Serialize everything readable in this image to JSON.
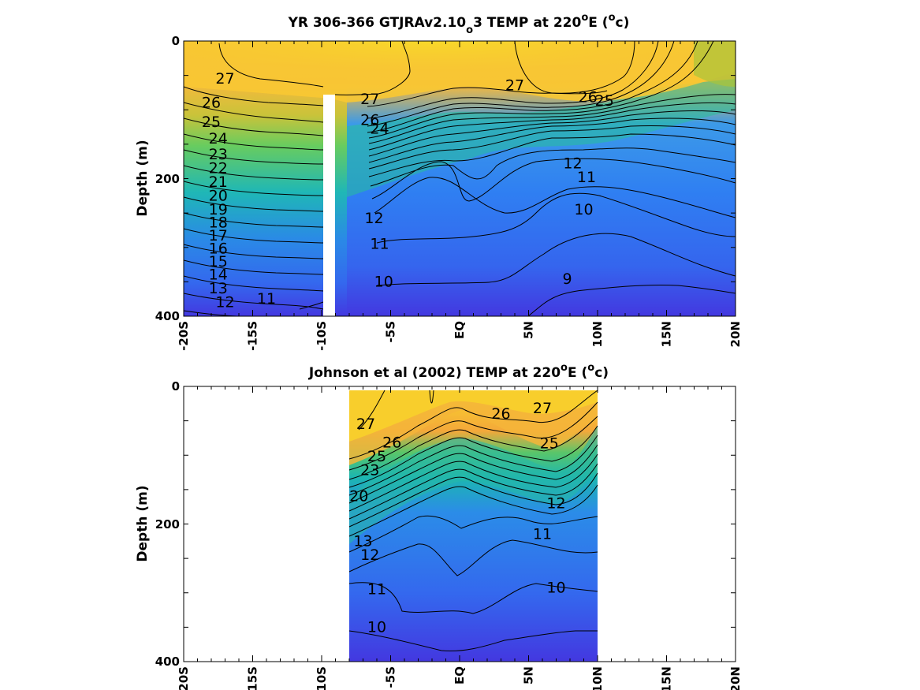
{
  "chart_data": [
    {
      "type": "heatmap",
      "title_prefix": "YR 306-366 GTJRAv2.10",
      "title_sub": "o",
      "title_mid": "3 TEMP at 220",
      "title_sup": "o",
      "title_mid2": "E (",
      "title_sup2": "o",
      "title_end": "c)",
      "ylabel": "Depth (m)",
      "xlim": [
        -20,
        20
      ],
      "ylim": [
        0,
        400
      ],
      "y_reversed": true,
      "x_ticks": [
        -20,
        -15,
        -10,
        -5,
        0,
        5,
        10,
        15,
        20
      ],
      "x_tick_labels": [
        "-20S",
        "-15S",
        "-10S",
        "-5S",
        "EQ",
        "5N",
        "10N",
        "15N",
        "20N"
      ],
      "y_ticks": [
        0,
        200,
        400
      ],
      "y_tick_labels": [
        "0",
        "200",
        "400"
      ],
      "colormap": [
        "#4338e0",
        "#2f7ff2",
        "#19c3ad",
        "#7cd05c",
        "#f5b93a",
        "#f9d929"
      ],
      "data_extent_x": [
        -20,
        20
      ],
      "missing_column_x": [
        -10,
        -9
      ],
      "contour_labels": [
        {
          "value": "27",
          "x": -17,
          "y": 55
        },
        {
          "value": "26",
          "x": -18,
          "y": 90
        },
        {
          "value": "25",
          "x": -18,
          "y": 118
        },
        {
          "value": "24",
          "x": -17.5,
          "y": 142
        },
        {
          "value": "23",
          "x": -17.5,
          "y": 165
        },
        {
          "value": "22",
          "x": -17.5,
          "y": 185
        },
        {
          "value": "21",
          "x": -17.5,
          "y": 205
        },
        {
          "value": "20",
          "x": -17.5,
          "y": 225
        },
        {
          "value": "19",
          "x": -17.5,
          "y": 245
        },
        {
          "value": "18",
          "x": -17.5,
          "y": 264
        },
        {
          "value": "17",
          "x": -17.5,
          "y": 283
        },
        {
          "value": "16",
          "x": -17.5,
          "y": 302
        },
        {
          "value": "15",
          "x": -17.5,
          "y": 321
        },
        {
          "value": "14",
          "x": -17.5,
          "y": 340
        },
        {
          "value": "13",
          "x": -17.5,
          "y": 360
        },
        {
          "value": "12",
          "x": -17,
          "y": 380
        },
        {
          "value": "11",
          "x": -14,
          "y": 375
        },
        {
          "value": "27",
          "x": -6.5,
          "y": 85
        },
        {
          "value": "26",
          "x": -6.5,
          "y": 115
        },
        {
          "value": "24",
          "x": -5.8,
          "y": 128
        },
        {
          "value": "12",
          "x": -6.2,
          "y": 258
        },
        {
          "value": "11",
          "x": -5.8,
          "y": 295
        },
        {
          "value": "10",
          "x": -5.5,
          "y": 350
        },
        {
          "value": "27",
          "x": 4,
          "y": 65
        },
        {
          "value": "26",
          "x": 9.3,
          "y": 82
        },
        {
          "value": "25",
          "x": 10.5,
          "y": 87
        },
        {
          "value": "12",
          "x": 8.2,
          "y": 178
        },
        {
          "value": "11",
          "x": 9.2,
          "y": 198
        },
        {
          "value": "10",
          "x": 9,
          "y": 245
        },
        {
          "value": "9",
          "x": 7.8,
          "y": 346
        }
      ],
      "levels": [
        27,
        26,
        25,
        24,
        23,
        22,
        21,
        20,
        19,
        18,
        17,
        16,
        15,
        14,
        13,
        12,
        11,
        10,
        9
      ]
    },
    {
      "type": "heatmap",
      "title_prefix": "Johnson et al (2002) TEMP at 220",
      "title_sup": "o",
      "title_mid": "E (",
      "title_sup2": "o",
      "title_end": "c)",
      "ylabel": "Depth (m)",
      "xlim": [
        -20,
        20
      ],
      "ylim": [
        0,
        400
      ],
      "y_reversed": true,
      "x_ticks": [
        -20,
        -15,
        -10,
        -5,
        0,
        5,
        10,
        15,
        20
      ],
      "x_tick_labels": [
        "20S",
        "15S",
        "10S",
        "-5S",
        "EQ",
        "5N",
        "10N",
        "15N",
        "20N"
      ],
      "y_ticks": [
        0,
        200,
        400
      ],
      "y_tick_labels": [
        "0",
        "200",
        "400"
      ],
      "data_extent_x": [
        -8,
        10
      ],
      "contour_labels": [
        {
          "value": "27",
          "x": -6.8,
          "y": 55
        },
        {
          "value": "26",
          "x": -4.9,
          "y": 82
        },
        {
          "value": "25",
          "x": -6,
          "y": 102
        },
        {
          "value": "23",
          "x": -6.5,
          "y": 122
        },
        {
          "value": "26",
          "x": 3,
          "y": 40
        },
        {
          "value": "27",
          "x": 6,
          "y": 32
        },
        {
          "value": "25",
          "x": 6.5,
          "y": 83
        },
        {
          "value": "20",
          "x": -7.3,
          "y": 160
        },
        {
          "value": "13",
          "x": -7,
          "y": 225
        },
        {
          "value": "12",
          "x": -6.5,
          "y": 245
        },
        {
          "value": "11",
          "x": -6,
          "y": 295
        },
        {
          "value": "10",
          "x": -6,
          "y": 350
        },
        {
          "value": "12",
          "x": 7,
          "y": 170
        },
        {
          "value": "11",
          "x": 6,
          "y": 215
        },
        {
          "value": "10",
          "x": 7,
          "y": 293
        }
      ],
      "levels": [
        27,
        26,
        25,
        24,
        23,
        22,
        21,
        20,
        19,
        18,
        17,
        16,
        15,
        14,
        13,
        12,
        11,
        10
      ]
    }
  ]
}
